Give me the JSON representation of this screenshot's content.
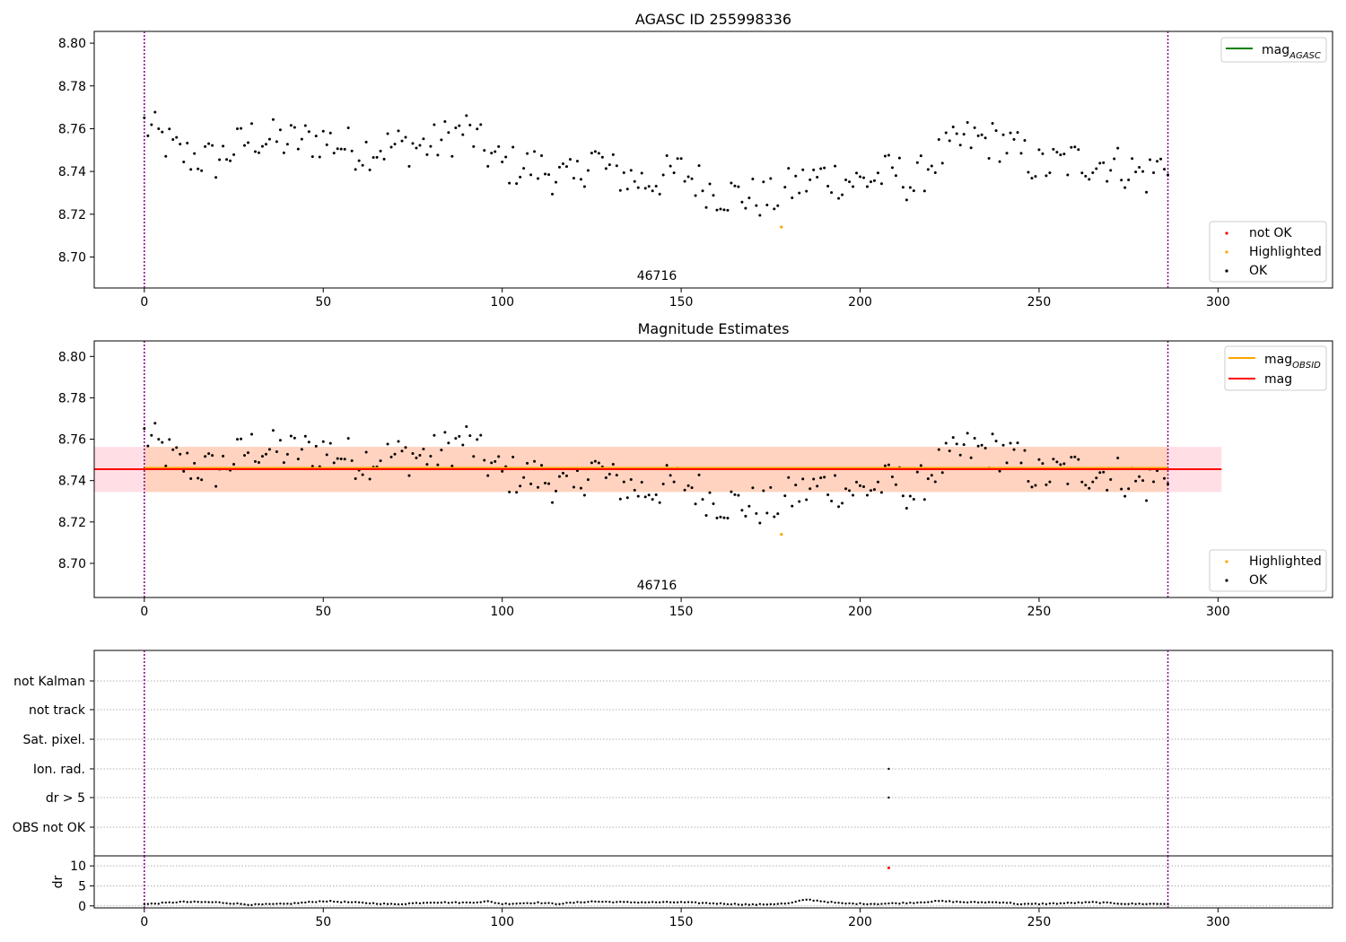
{
  "chart_data": [
    {
      "type": "scatter",
      "title": "AGASC ID 255998336",
      "annotation": "46716",
      "xlim": [
        -14,
        332
      ],
      "ylim": [
        8.6855,
        8.8055
      ],
      "xticks": [
        0,
        50,
        100,
        150,
        200,
        250,
        300
      ],
      "yticks": [
        8.7,
        8.72,
        8.74,
        8.76,
        8.78,
        8.8
      ],
      "ytick_labels": [
        "8.70",
        "8.72",
        "8.74",
        "8.76",
        "8.78",
        "8.80"
      ],
      "vlines": [
        0,
        286
      ],
      "legend_upper": {
        "position": "top-right",
        "entries": [
          {
            "label": "mag",
            "sub": "AGASC",
            "color": "#008000"
          }
        ]
      },
      "legend_lower": {
        "position": "bottom-right",
        "entries": [
          {
            "label": "not OK",
            "color": "#ff0000"
          },
          {
            "label": "Highlighted",
            "color": "#ffa500"
          },
          {
            "label": "OK",
            "color": "#000000"
          }
        ]
      },
      "series": [
        {
          "name": "OK",
          "color": "#000000",
          "anchors": [
            [
              0,
              8.762
            ],
            [
              10,
              8.748
            ],
            [
              20,
              8.745
            ],
            [
              30,
              8.756
            ],
            [
              40,
              8.754
            ],
            [
              50,
              8.755
            ],
            [
              60,
              8.75
            ],
            [
              70,
              8.752
            ],
            [
              80,
              8.752
            ],
            [
              90,
              8.76
            ],
            [
              95,
              8.75
            ],
            [
              100,
              8.743
            ],
            [
              110,
              8.742
            ],
            [
              120,
              8.735
            ],
            [
              125,
              8.748
            ],
            [
              130,
              8.74
            ],
            [
              140,
              8.735
            ],
            [
              150,
              8.74
            ],
            [
              160,
              8.73
            ],
            [
              170,
              8.728
            ],
            [
              175,
              8.727
            ],
            [
              180,
              8.732
            ],
            [
              190,
              8.738
            ],
            [
              200,
              8.735
            ],
            [
              210,
              8.74
            ],
            [
              215,
              8.733
            ],
            [
              220,
              8.745
            ],
            [
              230,
              8.755
            ],
            [
              240,
              8.754
            ],
            [
              250,
              8.742
            ],
            [
              260,
              8.745
            ],
            [
              270,
              8.744
            ],
            [
              280,
              8.738
            ],
            [
              286,
              8.746
            ]
          ]
        },
        {
          "name": "Highlighted",
          "color": "#ffa500",
          "points": [
            [
              178,
              8.714
            ]
          ]
        }
      ]
    },
    {
      "type": "scatter",
      "title": "Magnitude Estimates",
      "annotation": "46716",
      "xlim": [
        -14,
        332
      ],
      "ylim": [
        8.6835,
        8.8075
      ],
      "xticks": [
        0,
        50,
        100,
        150,
        200,
        250,
        300
      ],
      "yticks": [
        8.7,
        8.72,
        8.74,
        8.76,
        8.78,
        8.8
      ],
      "ytick_labels": [
        "8.70",
        "8.72",
        "8.74",
        "8.76",
        "8.78",
        "8.80"
      ],
      "vlines": [
        0,
        286
      ],
      "mag": {
        "value": 8.7455,
        "band": [
          8.7345,
          8.7563
        ],
        "xrange": [
          -14,
          301
        ],
        "color": "#ff0000",
        "band_color": "#ffc0cb"
      },
      "mag_obsid": {
        "value": 8.7455,
        "band": [
          8.7345,
          8.7563
        ],
        "xrange": [
          0,
          286
        ],
        "color": "#ffa500"
      },
      "legend_upper": {
        "position": "top-right",
        "entries": [
          {
            "label": "mag",
            "sub": "OBSID",
            "color": "#ffa500"
          },
          {
            "label": "mag",
            "sub": "",
            "color": "#ff0000"
          }
        ]
      },
      "legend_lower": {
        "position": "bottom-right",
        "entries": [
          {
            "label": "Highlighted",
            "color": "#ffa500"
          },
          {
            "label": "OK",
            "color": "#000000"
          }
        ]
      }
    },
    {
      "type": "scatter",
      "title": "",
      "xlim": [
        -14,
        332
      ],
      "xticks": [
        0,
        50,
        100,
        150,
        200,
        250,
        300
      ],
      "vlines": [
        0,
        286
      ],
      "flag_rows": [
        "not Kalman",
        "not track",
        "Sat. pixel.",
        "Ion. rad.",
        "dr > 5",
        "OBS not OK"
      ],
      "flag_points": [
        {
          "row": "Ion. rad.",
          "x": 208
        },
        {
          "row": "dr > 5",
          "x": 208
        }
      ],
      "dr": {
        "ylabel": "dr",
        "ylim": [
          -0.5,
          12.5
        ],
        "yticks": [
          0,
          5,
          10
        ],
        "ytick_labels": [
          "0",
          "5",
          "10"
        ],
        "outlier": {
          "x": 208,
          "y": 9.5,
          "color": "#ff0000"
        },
        "anchors": [
          [
            0,
            0.4
          ],
          [
            10,
            1.0
          ],
          [
            20,
            0.9
          ],
          [
            30,
            0.3
          ],
          [
            40,
            0.5
          ],
          [
            50,
            1.2
          ],
          [
            60,
            0.8
          ],
          [
            70,
            0.4
          ],
          [
            80,
            0.9
          ],
          [
            90,
            0.8
          ],
          [
            96,
            1.1
          ],
          [
            100,
            0.5
          ],
          [
            110,
            0.8
          ],
          [
            115,
            0.5
          ],
          [
            125,
            1.1
          ],
          [
            135,
            0.9
          ],
          [
            150,
            0.9
          ],
          [
            160,
            0.6
          ],
          [
            170,
            0.3
          ],
          [
            180,
            0.6
          ],
          [
            185,
            1.6
          ],
          [
            195,
            0.6
          ],
          [
            205,
            0.5
          ],
          [
            215,
            0.8
          ],
          [
            222,
            1.2
          ],
          [
            230,
            0.9
          ],
          [
            240,
            0.9
          ],
          [
            245,
            0.4
          ],
          [
            255,
            0.6
          ],
          [
            265,
            0.9
          ],
          [
            275,
            0.5
          ],
          [
            286,
            0.5
          ]
        ]
      }
    }
  ]
}
